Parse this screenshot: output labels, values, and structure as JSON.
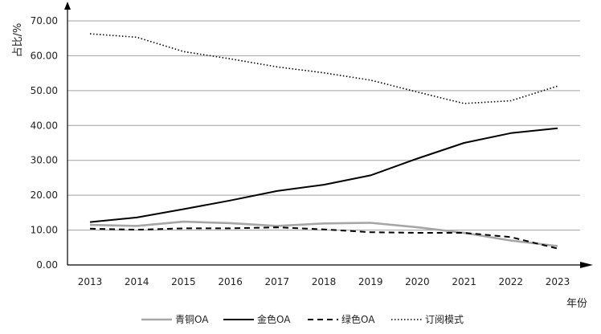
{
  "chart_data": {
    "type": "line",
    "title": "",
    "xlabel": "年份",
    "ylabel": "占比/%",
    "x": [
      "2013",
      "2014",
      "2015",
      "2016",
      "2017",
      "2018",
      "2019",
      "2020",
      "2021",
      "2022",
      "2023"
    ],
    "ylim": [
      0,
      70
    ],
    "yticks": [
      "0.00",
      "10.00",
      "20.00",
      "30.00",
      "40.00",
      "50.00",
      "60.00",
      "70.00"
    ],
    "grid": "horizontal",
    "legend_position": "bottom",
    "series": [
      {
        "name": "青铜OA",
        "color": "#a6a6a6",
        "dash": "solid",
        "values": [
          11.5,
          11.2,
          12.4,
          12.0,
          11.2,
          11.9,
          12.1,
          10.8,
          9.2,
          7.0,
          5.4
        ]
      },
      {
        "name": "金色OA",
        "color": "#000000",
        "dash": "solid",
        "values": [
          12.3,
          13.6,
          16.0,
          18.5,
          21.2,
          23.0,
          25.7,
          30.5,
          35.0,
          37.8,
          39.2
        ]
      },
      {
        "name": "绿色OA",
        "color": "#000000",
        "dash": "dashed",
        "values": [
          10.4,
          10.1,
          10.5,
          10.5,
          10.8,
          10.2,
          9.4,
          9.2,
          9.2,
          8.0,
          4.7
        ]
      },
      {
        "name": "订阅模式",
        "color": "#000000",
        "dash": "dotted",
        "values": [
          66.3,
          65.3,
          61.2,
          59.1,
          56.8,
          55.1,
          53.0,
          49.6,
          46.3,
          47.1,
          51.3
        ]
      }
    ]
  }
}
